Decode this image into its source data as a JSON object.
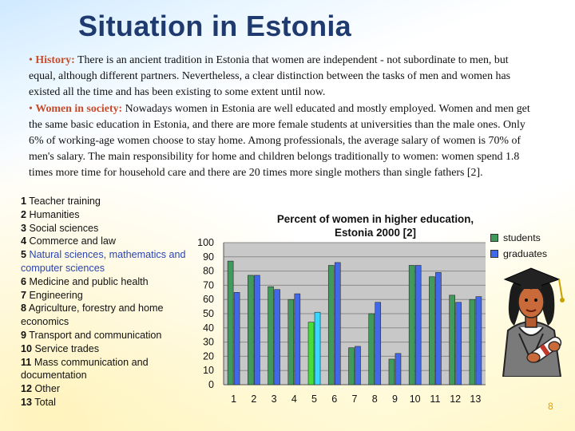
{
  "slide": {
    "title": "Situation in Estonia",
    "page_number": "8"
  },
  "text": {
    "bullet": "•",
    "history_label": "History:",
    "history_body": " There is an ancient tradition in Estonia that women are independent - not subordinate to men, but equal, although different partners. Nevertheless, a clear distinction between the tasks of men and women has existed all the time and has been existing to some extent until now.",
    "women_label": "Women in society:",
    "women_body": " Nowadays women in Estonia are well educated and mostly employed. Women and men get the same basic education in Estonia, and there are more female students at universities than the male ones. Only 6% of working-age women choose to stay home. Among professionals, the average salary of women is 70% of men's salary. The main responsibility for home and children belongs traditionally to women: women spend 1.8 times more time for household care and there are 20 times more single mothers than single fathers [2]."
  },
  "category_list": [
    {
      "num": "1",
      "label": "Teacher training"
    },
    {
      "num": "2",
      "label": "Humanities"
    },
    {
      "num": "3",
      "label": "Social sciences"
    },
    {
      "num": "4",
      "label": "Commerce and law"
    },
    {
      "num": "5",
      "label": "Natural sciences, mathematics and computer sciences"
    },
    {
      "num": "6",
      "label": "Medicine and public health"
    },
    {
      "num": "7",
      "label": "Engineering"
    },
    {
      "num": "8",
      "label": "Agriculture, forestry and  home economics"
    },
    {
      "num": "9",
      "label": "Transport and communication"
    },
    {
      "num": "10",
      "label": "Service trades"
    },
    {
      "num": "11",
      "label": "Mass communication and documentation"
    },
    {
      "num": "12",
      "label": "Other"
    },
    {
      "num": "13",
      "label": "Total"
    }
  ],
  "chart_data": {
    "type": "bar",
    "title_line1": "Percent of women in higher education,",
    "title_line2": "Estonia 2000 [2]",
    "categories": [
      "1",
      "2",
      "3",
      "4",
      "5",
      "6",
      "7",
      "8",
      "9",
      "10",
      "11",
      "12",
      "13"
    ],
    "series": [
      {
        "name": "students",
        "values": [
          87,
          77,
          69,
          60,
          44,
          84,
          26,
          50,
          18,
          84,
          76,
          63,
          60
        ]
      },
      {
        "name": "graduates",
        "values": [
          65,
          77,
          67,
          64,
          51,
          86,
          27,
          58,
          22,
          84,
          79,
          58,
          62
        ]
      }
    ],
    "highlight_category": "5",
    "ylim": [
      0,
      100
    ],
    "yticks": [
      "0",
      "10",
      "20",
      "30",
      "40",
      "50",
      "60",
      "70",
      "80",
      "90",
      "100"
    ],
    "colors": {
      "students": "#3f9a5b",
      "graduates": "#4168e8",
      "students_highlight": "#43e03a",
      "graduates_highlight": "#35d8ff",
      "plot_bg": "#c8c8c8"
    }
  }
}
